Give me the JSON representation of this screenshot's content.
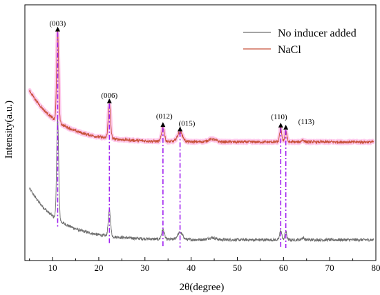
{
  "chart_data": {
    "type": "line",
    "title": "",
    "xlabel": "2θ(degree)",
    "ylabel": "Intensity(a.u.)",
    "xlim": [
      4,
      80
    ],
    "x_ticks": [
      10,
      20,
      30,
      40,
      50,
      60,
      70,
      80
    ],
    "y_ticks_shown": false,
    "legend_position": "top-right",
    "series": [
      {
        "name": "No inducer added",
        "color": "#6e6e6e",
        "baseline": 30,
        "bg_amp": 75,
        "bg_decay": 6.5,
        "offset": 0,
        "noise": 2.2,
        "peaks": [
          {
            "x": 11.1,
            "h": 148,
            "w": 0.22
          },
          {
            "x": 22.3,
            "h": 38,
            "w": 0.25
          },
          {
            "x": 33.9,
            "h": 14,
            "w": 0.3
          },
          {
            "x": 37.6,
            "h": 10,
            "w": 0.55
          },
          {
            "x": 44.5,
            "h": 3,
            "w": 0.8
          },
          {
            "x": 59.4,
            "h": 14,
            "w": 0.22
          },
          {
            "x": 60.5,
            "h": 12,
            "w": 0.22
          },
          {
            "x": 64.2,
            "h": 3,
            "w": 0.3
          }
        ]
      },
      {
        "name": "NaCl",
        "color": "#c8523a",
        "baseline": 172,
        "bg_amp": 75,
        "bg_decay": 6.5,
        "offset": 0,
        "noise": 2.2,
        "peaks": [
          {
            "x": 11.1,
            "h": 130,
            "w": 0.22
          },
          {
            "x": 22.3,
            "h": 50,
            "w": 0.25
          },
          {
            "x": 33.9,
            "h": 20,
            "w": 0.3
          },
          {
            "x": 37.6,
            "h": 14,
            "w": 0.55
          },
          {
            "x": 44.5,
            "h": 4,
            "w": 0.8
          },
          {
            "x": 59.4,
            "h": 20,
            "w": 0.22
          },
          {
            "x": 60.5,
            "h": 17,
            "w": 0.22
          },
          {
            "x": 64.2,
            "h": 3,
            "w": 0.3
          }
        ]
      }
    ],
    "peak_markers": [
      {
        "label": "(003)",
        "x": 11.1
      },
      {
        "label": "(006)",
        "x": 22.3
      },
      {
        "label": "(012)",
        "x": 33.9
      },
      {
        "label": "(015)",
        "x": 37.6
      },
      {
        "label": "(110)",
        "x": 59.4
      },
      {
        "label": "(113)",
        "x": 60.5
      }
    ],
    "marker_line_color": "#a020f0",
    "highlight_color": "#ff66cc"
  }
}
